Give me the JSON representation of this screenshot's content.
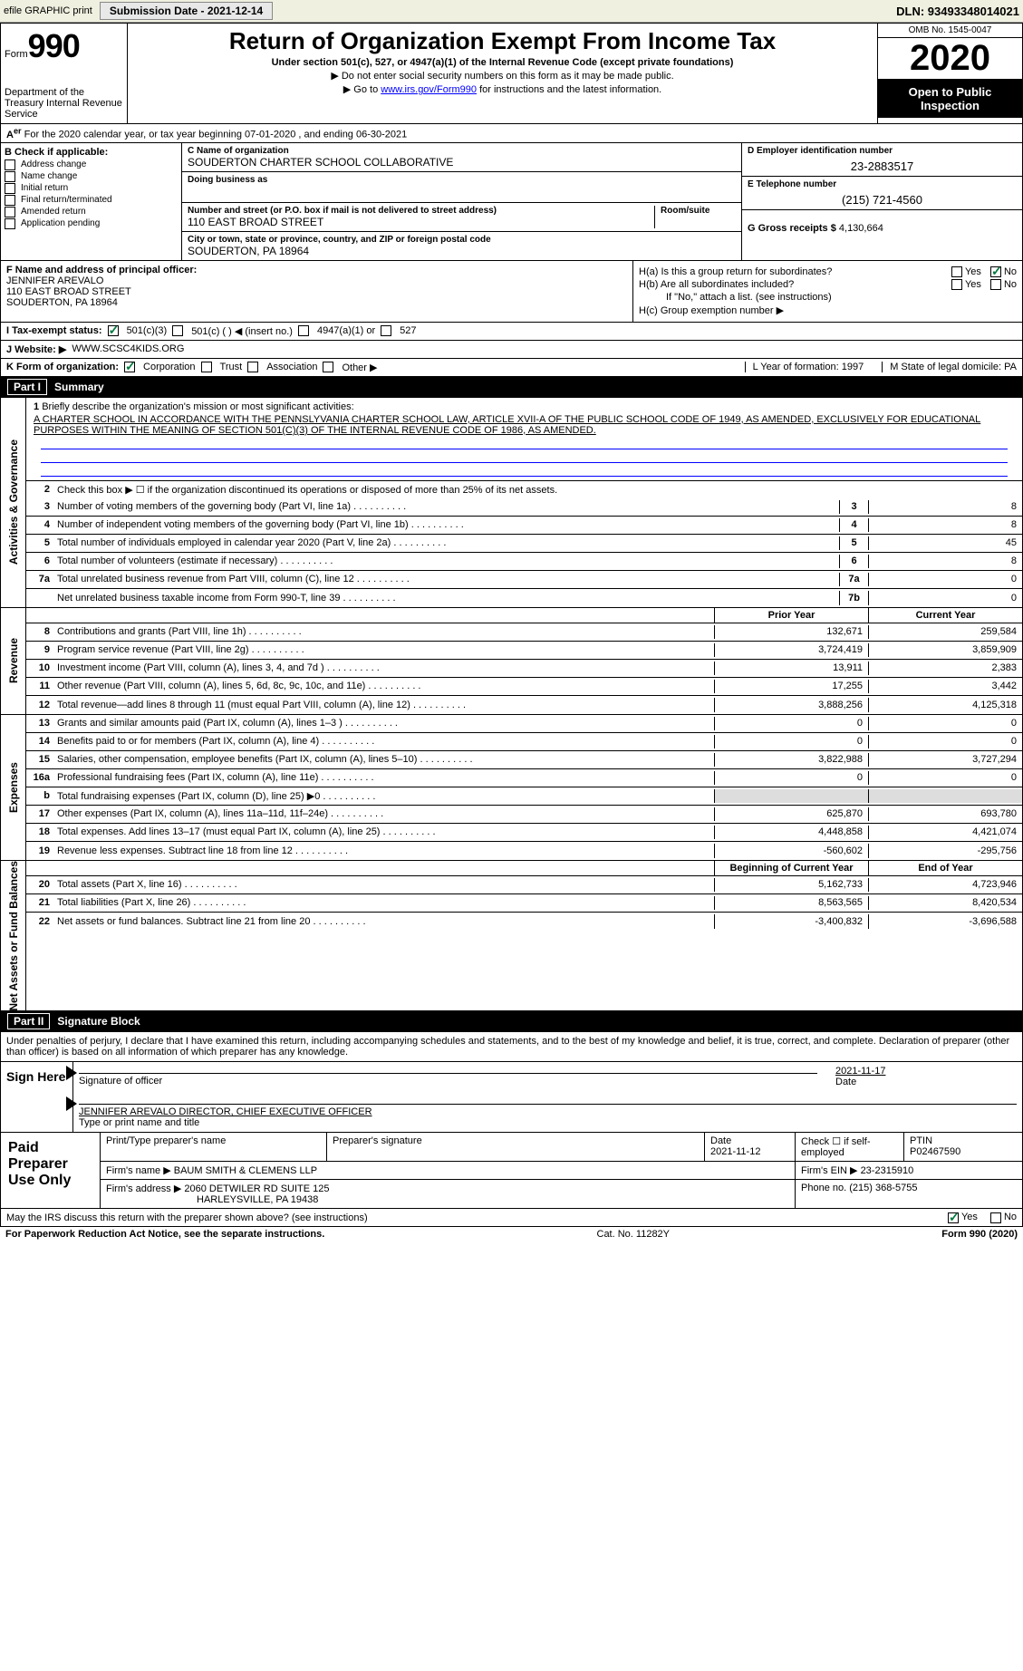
{
  "top": {
    "efile": "efile GRAPHIC print",
    "sub_label": "Submission Date - 2021-12-14",
    "dln": "DLN: 93493348014021"
  },
  "hdr": {
    "form_label": "Form",
    "form_num": "990",
    "dept": "Department of the Treasury Internal Revenue Service",
    "title": "Return of Organization Exempt From Income Tax",
    "sub": "Under section 501(c), 527, or 4947(a)(1) of the Internal Revenue Code (except private foundations)",
    "note1": "▶ Do not enter social security numbers on this form as it may be made public.",
    "note2_a": "▶ Go to ",
    "note2_link": "www.irs.gov/Form990",
    "note2_b": " for instructions and the latest information.",
    "omb": "OMB No. 1545-0047",
    "year": "2020",
    "pub": "Open to Public Inspection"
  },
  "a": {
    "text": "For the 2020 calendar year, or tax year beginning 07-01-2020    , and ending 06-30-2021"
  },
  "b": {
    "lbl": "B Check if applicable:",
    "opts": [
      "Address change",
      "Name change",
      "Initial return",
      "Final return/terminated",
      "Amended return",
      "Application pending"
    ]
  },
  "c": {
    "name_lbl": "C Name of organization",
    "name": "SOUDERTON CHARTER SCHOOL COLLABORATIVE",
    "dba_lbl": "Doing business as",
    "dba": "",
    "addr_lbl": "Number and street (or P.O. box if mail is not delivered to street address)",
    "room_lbl": "Room/suite",
    "addr": "110 EAST BROAD STREET",
    "city_lbl": "City or town, state or province, country, and ZIP or foreign postal code",
    "city": "SOUDERTON, PA  18964"
  },
  "d": {
    "lbl": "D Employer identification number",
    "val": "23-2883517"
  },
  "e": {
    "lbl": "E Telephone number",
    "val": "(215) 721-4560"
  },
  "g": {
    "lbl": "G Gross receipts $",
    "val": "4,130,664"
  },
  "f": {
    "lbl": "F  Name and address of principal officer:",
    "name": "JENNIFER AREVALO",
    "addr1": "110 EAST BROAD STREET",
    "addr2": "SOUDERTON, PA  18964"
  },
  "h": {
    "a_lbl": "H(a)  Is this a group return for subordinates?",
    "b_lbl": "H(b)  Are all subordinates included?",
    "note": "If \"No,\" attach a list. (see instructions)",
    "c_lbl": "H(c)  Group exemption number ▶",
    "yes": "Yes",
    "no": "No"
  },
  "i": {
    "lbl": "I  Tax-exempt status:",
    "o1": "501(c)(3)",
    "o2": "501(c) (   ) ◀ (insert no.)",
    "o3": "4947(a)(1) or",
    "o4": "527"
  },
  "j": {
    "lbl": "J  Website: ▶",
    "val": "WWW.SCSC4KIDS.ORG"
  },
  "k": {
    "lbl": "K Form of organization:",
    "o1": "Corporation",
    "o2": "Trust",
    "o3": "Association",
    "o4": "Other ▶",
    "l": "L Year of formation: 1997",
    "m": "M State of legal domicile: PA"
  },
  "p1": {
    "hdr": "Part I",
    "title": "Summary",
    "l1_lbl": "1",
    "l1": "Briefly describe the organization's mission or most significant activities:",
    "l1_txt": "A CHARTER SCHOOL IN ACCORDANCE WITH THE PENNSLYVANIA CHARTER SCHOOL LAW, ARTICLE XVII-A OF THE PUBLIC SCHOOL CODE OF 1949, AS AMENDED, EXCLUSIVELY FOR EDUCATIONAL PURPOSES WITHIN THE MEANING OF SECTION 501(C)(3) OF THE INTERNAL REVENUE CODE OF 1986, AS AMENDED.",
    "side_ag": "Activities & Governance",
    "l2": "Check this box ▶ ☐ if the organization discontinued its operations or disposed of more than 25% of its net assets.",
    "rows_ag": [
      {
        "n": "3",
        "d": "Number of voting members of the governing body (Part VI, line 1a)",
        "b": "3",
        "v": "8"
      },
      {
        "n": "4",
        "d": "Number of independent voting members of the governing body (Part VI, line 1b)",
        "b": "4",
        "v": "8"
      },
      {
        "n": "5",
        "d": "Total number of individuals employed in calendar year 2020 (Part V, line 2a)",
        "b": "5",
        "v": "45"
      },
      {
        "n": "6",
        "d": "Total number of volunteers (estimate if necessary)",
        "b": "6",
        "v": "8"
      },
      {
        "n": "7a",
        "d": "Total unrelated business revenue from Part VIII, column (C), line 12",
        "b": "7a",
        "v": "0"
      },
      {
        "n": "",
        "d": "Net unrelated business taxable income from Form 990-T, line 39",
        "b": "7b",
        "v": "0"
      }
    ],
    "side_rev": "Revenue",
    "col_py": "Prior Year",
    "col_cy": "Current Year",
    "rows_rev": [
      {
        "n": "8",
        "d": "Contributions and grants (Part VIII, line 1h)",
        "py": "132,671",
        "cy": "259,584"
      },
      {
        "n": "9",
        "d": "Program service revenue (Part VIII, line 2g)",
        "py": "3,724,419",
        "cy": "3,859,909"
      },
      {
        "n": "10",
        "d": "Investment income (Part VIII, column (A), lines 3, 4, and 7d )",
        "py": "13,911",
        "cy": "2,383"
      },
      {
        "n": "11",
        "d": "Other revenue (Part VIII, column (A), lines 5, 6d, 8c, 9c, 10c, and 11e)",
        "py": "17,255",
        "cy": "3,442"
      },
      {
        "n": "12",
        "d": "Total revenue—add lines 8 through 11 (must equal Part VIII, column (A), line 12)",
        "py": "3,888,256",
        "cy": "4,125,318"
      }
    ],
    "side_exp": "Expenses",
    "rows_exp": [
      {
        "n": "13",
        "d": "Grants and similar amounts paid (Part IX, column (A), lines 1–3 )",
        "py": "0",
        "cy": "0"
      },
      {
        "n": "14",
        "d": "Benefits paid to or for members (Part IX, column (A), line 4)",
        "py": "0",
        "cy": "0"
      },
      {
        "n": "15",
        "d": "Salaries, other compensation, employee benefits (Part IX, column (A), lines 5–10)",
        "py": "3,822,988",
        "cy": "3,727,294"
      },
      {
        "n": "16a",
        "d": "Professional fundraising fees (Part IX, column (A), line 11e)",
        "py": "0",
        "cy": "0"
      },
      {
        "n": "b",
        "d": "Total fundraising expenses (Part IX, column (D), line 25) ▶0",
        "py": "",
        "cy": "",
        "gray": true
      },
      {
        "n": "17",
        "d": "Other expenses (Part IX, column (A), lines 11a–11d, 11f–24e)",
        "py": "625,870",
        "cy": "693,780"
      },
      {
        "n": "18",
        "d": "Total expenses. Add lines 13–17 (must equal Part IX, column (A), line 25)",
        "py": "4,448,858",
        "cy": "4,421,074"
      },
      {
        "n": "19",
        "d": "Revenue less expenses. Subtract line 18 from line 12",
        "py": "-560,602",
        "cy": "-295,756"
      }
    ],
    "side_net": "Net Assets or Fund Balances",
    "col_boy": "Beginning of Current Year",
    "col_eoy": "End of Year",
    "rows_net": [
      {
        "n": "20",
        "d": "Total assets (Part X, line 16)",
        "py": "5,162,733",
        "cy": "4,723,946"
      },
      {
        "n": "21",
        "d": "Total liabilities (Part X, line 26)",
        "py": "8,563,565",
        "cy": "8,420,534"
      },
      {
        "n": "22",
        "d": "Net assets or fund balances. Subtract line 21 from line 20",
        "py": "-3,400,832",
        "cy": "-3,696,588"
      }
    ]
  },
  "p2": {
    "hdr": "Part II",
    "title": "Signature Block",
    "decl": "Under penalties of perjury, I declare that I have examined this return, including accompanying schedules and statements, and to the best of my knowledge and belief, it is true, correct, and complete. Declaration of preparer (other than officer) is based on all information of which preparer has any knowledge.",
    "sign_here": "Sign Here",
    "sig_of": "Signature of officer",
    "date_lbl": "Date",
    "date": "2021-11-17",
    "name": "JENNIFER AREVALO  DIRECTOR, CHIEF EXECUTIVE OFFICER",
    "type_lbl": "Type or print name and title"
  },
  "paid": {
    "lbl": "Paid Preparer Use Only",
    "h1": "Print/Type preparer's name",
    "h2": "Preparer's signature",
    "h3": "Date",
    "h3v": "2021-11-12",
    "h4": "Check ☐ if self-employed",
    "h5": "PTIN",
    "h5v": "P02467590",
    "firm_lbl": "Firm's name    ▶",
    "firm": "BAUM SMITH & CLEMENS LLP",
    "ein_lbl": "Firm's EIN ▶",
    "ein": "23-2315910",
    "addr_lbl": "Firm's address ▶",
    "addr1": "2060 DETWILER RD SUITE 125",
    "addr2": "HARLEYSVILLE, PA  19438",
    "phone_lbl": "Phone no.",
    "phone": "(215) 368-5755"
  },
  "discuss": {
    "q": "May the IRS discuss this return with the preparer shown above? (see instructions)",
    "yes": "Yes",
    "no": "No"
  },
  "ftr": {
    "l": "For Paperwork Reduction Act Notice, see the separate instructions.",
    "c": "Cat. No. 11282Y",
    "r": "Form 990 (2020)"
  }
}
